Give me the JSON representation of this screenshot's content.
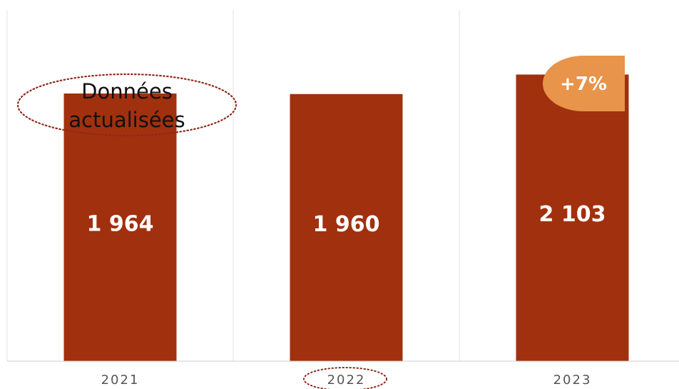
{
  "chart_data": {
    "type": "bar",
    "categories": [
      "2021",
      "2022",
      "2023"
    ],
    "values": [
      1964,
      1960,
      2103
    ],
    "value_labels": [
      "1 964",
      "1 960",
      "2 103"
    ],
    "ylim": [
      0,
      2650
    ],
    "grid": false,
    "highlighted_category": "2022",
    "annotations": {
      "note_lines": [
        "Données",
        "actualisées"
      ],
      "change_badge": "+7%"
    }
  },
  "colors": {
    "bar": "#A1300E",
    "badge": "#E8944A",
    "dotted_outline": "#8B2A1A",
    "separator": "#E2E2E2",
    "axis": "#CCCCCC"
  }
}
